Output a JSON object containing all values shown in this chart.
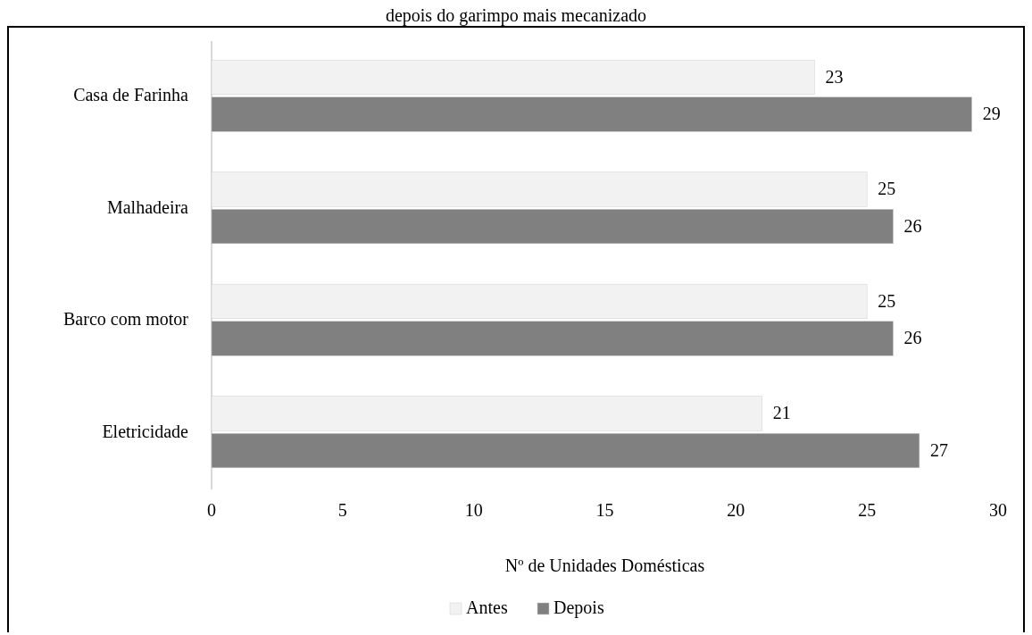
{
  "chart_data": {
    "type": "bar",
    "orientation": "horizontal",
    "title": "depois do garimpo mais mecanizado",
    "xlabel": "Nº de Unidades Domésticas",
    "categories": [
      "Casa de Farinha",
      "Malhadeira",
      "Barco com motor",
      "Eletricidade"
    ],
    "series": [
      {
        "name": "Antes",
        "color": "#f2f2f2",
        "values": [
          23,
          25,
          25,
          21
        ]
      },
      {
        "name": "Depois",
        "color": "#808080",
        "values": [
          29,
          26,
          26,
          27
        ]
      }
    ],
    "xlim": [
      0,
      30
    ],
    "xticks": [
      0,
      5,
      10,
      15,
      20,
      25,
      30
    ],
    "data_labels": true,
    "legend": "bottom",
    "grid": false
  }
}
